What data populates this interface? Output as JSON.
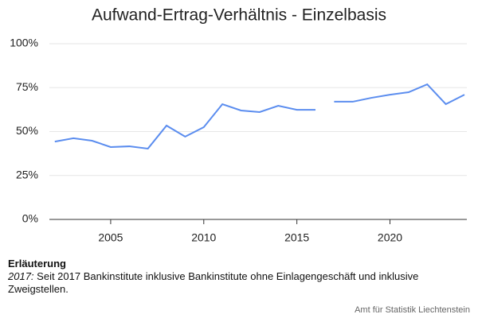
{
  "chart_data": {
    "type": "line",
    "title": "Aufwand-Ertrag-Verhältnis - Einzelbasis",
    "series": [
      {
        "color": "#5b8def",
        "x": [
          2002,
          2003,
          2004,
          2005,
          2006,
          2007,
          2008,
          2009,
          2010,
          2011,
          2012,
          2013,
          2014,
          2015,
          2016
        ],
        "values": [
          44.3,
          46.2,
          44.8,
          41.2,
          41.6,
          40.3,
          53.4,
          47.1,
          52.5,
          65.6,
          62.0,
          61.1,
          64.7,
          62.4,
          62.4
        ]
      },
      {
        "color": "#5b8def",
        "x": [
          2017,
          2018,
          2019,
          2020,
          2021,
          2022,
          2023,
          2024
        ],
        "values": [
          67.0,
          67.0,
          69.2,
          71.0,
          72.4,
          76.9,
          65.6,
          71.0
        ]
      }
    ],
    "xlim": [
      2002,
      2024
    ],
    "xticks": [
      2005,
      2010,
      2015,
      2020
    ],
    "ylim": [
      0,
      100
    ],
    "yticks": [
      {
        "value": 0,
        "label": "0%"
      },
      {
        "value": 25,
        "label": "25%"
      },
      {
        "value": 50,
        "label": "50%"
      },
      {
        "value": 75,
        "label": "75%"
      },
      {
        "value": 100,
        "label": "100%"
      }
    ],
    "grid": true
  },
  "note": {
    "heading": "Erläuterung",
    "label": "2017:",
    "text": "Seit 2017 Bankinstitute inklusive Bankinstitute ohne Einlagengeschäft und inklusive Zweigstellen."
  },
  "source": "Amt für Statistik Liechtenstein"
}
